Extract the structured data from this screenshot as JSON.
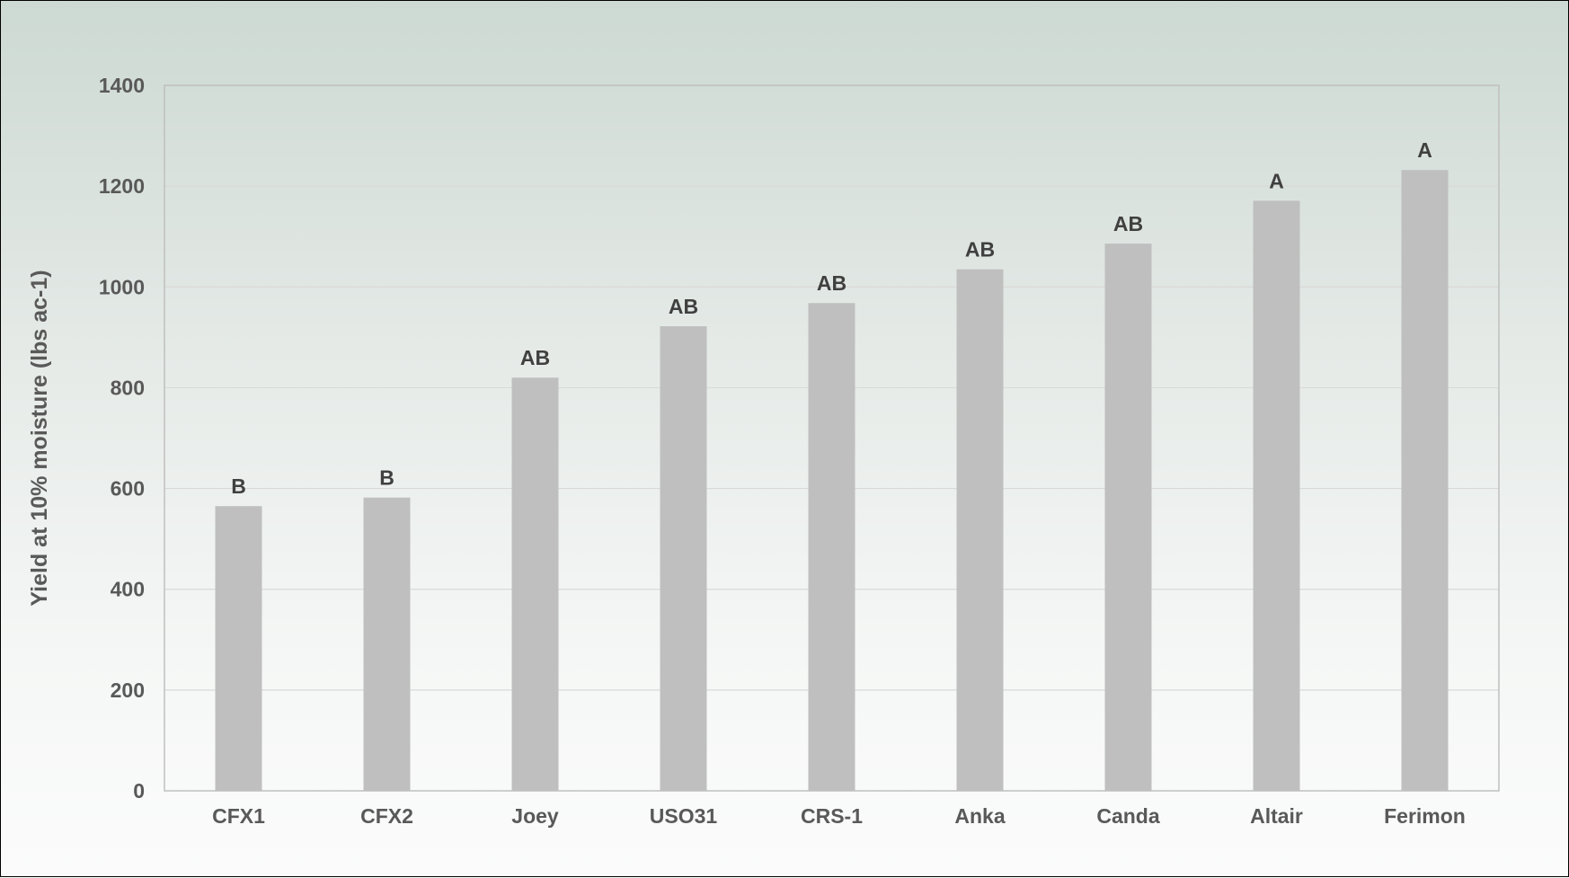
{
  "chart_data": {
    "type": "bar",
    "title": "",
    "xlabel": "",
    "ylabel": "Yield at 10% moisture (lbs ac-1)",
    "categories": [
      "CFX1",
      "CFX2",
      "Joey",
      "USO31",
      "CRS-1",
      "Anka",
      "Canda",
      "Altair",
      "Ferimon"
    ],
    "values": [
      565,
      582,
      820,
      922,
      968,
      1035,
      1086,
      1171,
      1232
    ],
    "data_labels": [
      "B",
      "B",
      "AB",
      "AB",
      "AB",
      "AB",
      "AB",
      "A",
      "A"
    ],
    "ylim": [
      0,
      1400
    ],
    "yticks": [
      0,
      200,
      400,
      600,
      800,
      1000,
      1200,
      1400
    ],
    "grid": true,
    "legend": "none",
    "colors": {
      "bar": "#bfbfbf",
      "grid": "#d9d9d9",
      "axis": "#bfbfbf"
    }
  }
}
